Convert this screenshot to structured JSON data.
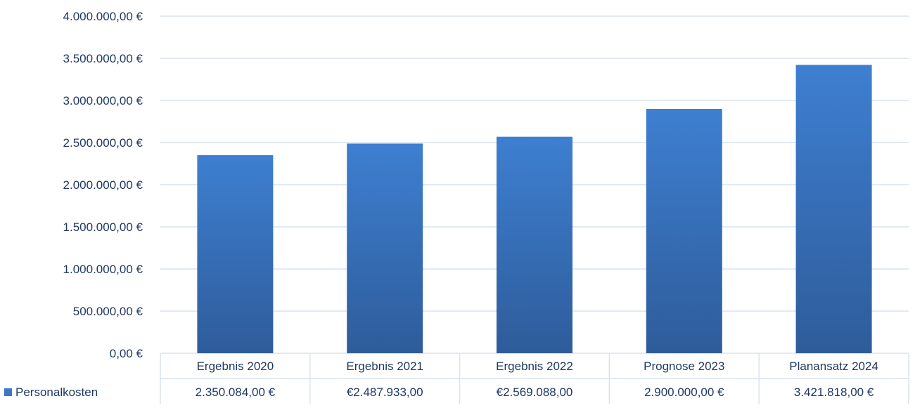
{
  "chart_data": {
    "type": "bar",
    "categories": [
      "Ergebnis 2020",
      "Ergebnis 2021",
      "Ergebnis 2022",
      "Prognose 2023",
      "Planansatz 2024"
    ],
    "series": [
      {
        "name": "Personalkosten",
        "values": [
          2350084.0,
          2487933.0,
          2569088.0,
          2900000.0,
          3421818.0
        ],
        "value_labels": [
          "2.350.084,00 €",
          "€2.487.933,00",
          "€2.569.088,00",
          "2.900.000,00 €",
          "3.421.818,00 €"
        ]
      }
    ],
    "ylim": [
      0,
      4000000
    ],
    "yticks": [
      0,
      500000,
      1000000,
      1500000,
      2000000,
      2500000,
      3000000,
      3500000,
      4000000
    ],
    "ytick_labels": [
      "0,00 €",
      "500.000,00 €",
      "1.000.000,00 €",
      "1.500.000,00 €",
      "2.000.000,00 €",
      "2.500.000,00 €",
      "3.000.000,00 €",
      "3.500.000,00 €",
      "4.000.000,00 €"
    ],
    "grid": true,
    "data_table": true,
    "legend": "bottom-left",
    "title": "",
    "xlabel": "",
    "ylabel": "",
    "colors": {
      "bar_top": "#3E7FD1",
      "bar_bottom": "#2E5C9A",
      "grid": "#D9E2F1",
      "text": "#1F3864",
      "legend_swatch": "#3A77C9"
    }
  }
}
